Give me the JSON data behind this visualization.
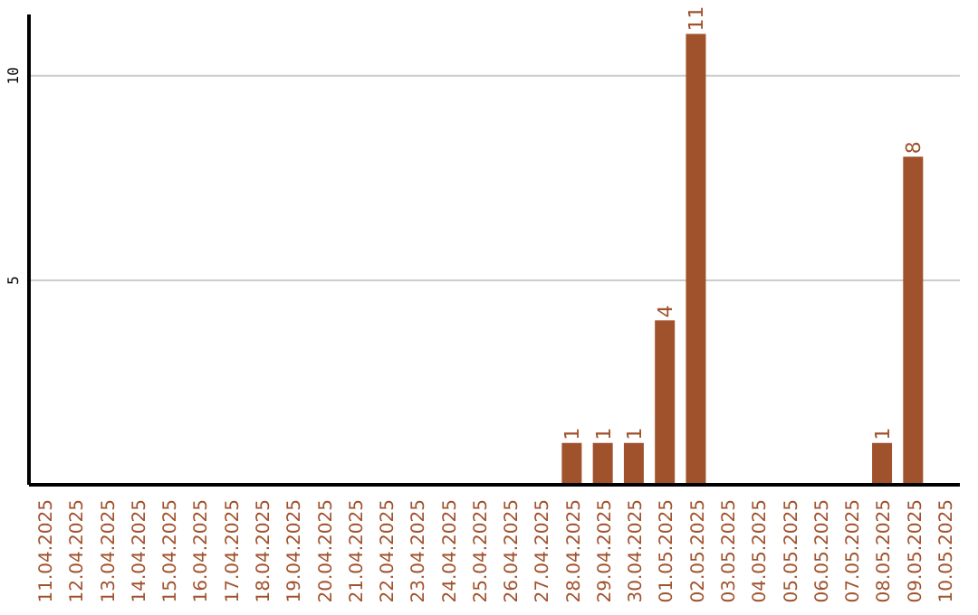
{
  "chart_data": {
    "type": "bar",
    "categories": [
      "11.04.2025",
      "12.04.2025",
      "13.04.2025",
      "14.04.2025",
      "15.04.2025",
      "16.04.2025",
      "17.04.2025",
      "18.04.2025",
      "19.04.2025",
      "20.04.2025",
      "21.04.2025",
      "22.04.2025",
      "23.04.2025",
      "24.04.2025",
      "25.04.2025",
      "26.04.2025",
      "27.04.2025",
      "28.04.2025",
      "29.04.2025",
      "30.04.2025",
      "01.05.2025",
      "02.05.2025",
      "03.05.2025",
      "04.05.2025",
      "05.05.2025",
      "06.05.2025",
      "07.05.2025",
      "08.05.2025",
      "09.05.2025",
      "10.05.2025"
    ],
    "values": [
      0,
      0,
      0,
      0,
      0,
      0,
      0,
      0,
      0,
      0,
      0,
      0,
      0,
      0,
      0,
      0,
      0,
      1,
      1,
      1,
      4,
      11,
      0,
      0,
      0,
      0,
      0,
      1,
      8,
      0
    ],
    "value_labels": [
      null,
      null,
      null,
      null,
      null,
      null,
      null,
      null,
      null,
      null,
      null,
      null,
      null,
      null,
      null,
      null,
      null,
      "1",
      "1",
      "1",
      "4",
      "11",
      null,
      null,
      null,
      null,
      null,
      "1",
      "8",
      null
    ],
    "color": "#a0522d",
    "ylim": [
      0,
      11.5
    ],
    "yticks": [
      5,
      10
    ],
    "grid": "y"
  }
}
